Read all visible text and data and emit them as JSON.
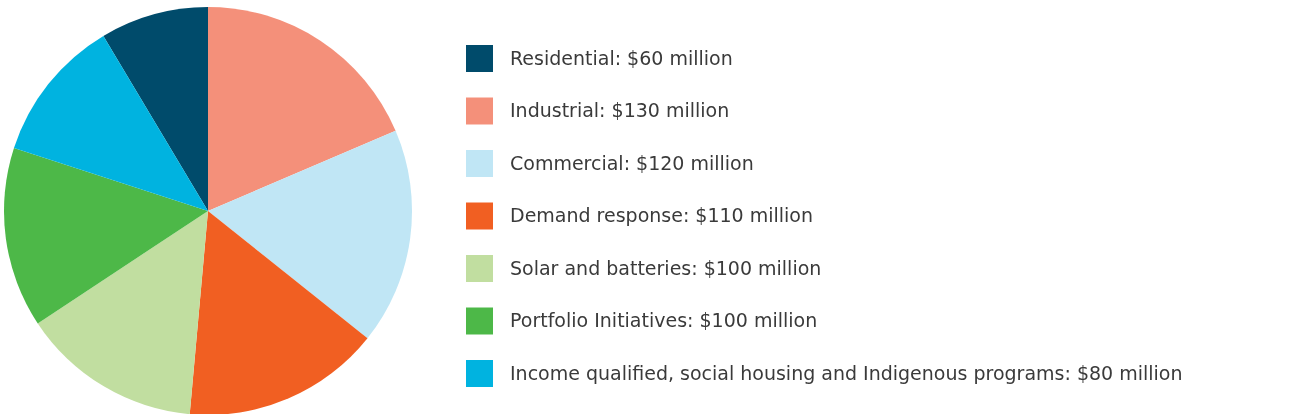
{
  "chart_data": {
    "type": "pie",
    "categories": [
      "Residential",
      "Industrial",
      "Commercial",
      "Demand response",
      "Solar and batteries",
      "Portfolio Initiatives",
      "Income qualified, social housing and Indigenous programs"
    ],
    "values": [
      60,
      130,
      120,
      110,
      100,
      100,
      80
    ],
    "value_labels": [
      "$60 million",
      "$130 million",
      "$120 million",
      "$110 million",
      "$100 million",
      "$100 million",
      "$80 million"
    ],
    "colors": [
      "#004b6b",
      "#f4907a",
      "#c0e6f5",
      "#f15f22",
      "#c1dea0",
      "#4db848",
      "#00b3e0"
    ],
    "legend": "right"
  }
}
